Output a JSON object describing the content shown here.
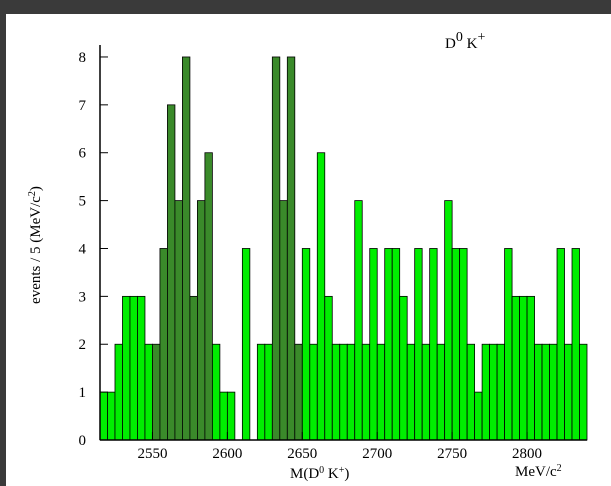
{
  "chart_data": {
    "type": "histogram",
    "title": [
      "D",
      "0",
      " K",
      "+"
    ],
    "xlabel": [
      "M(D",
      "0",
      " K",
      "+",
      ")"
    ],
    "xunit": [
      "MeV/c",
      "2"
    ],
    "ylabel": [
      "events / 5 (MeV/c",
      "2",
      ")"
    ],
    "bins": [
      2515,
      2520,
      2525,
      2530,
      2535,
      2540,
      2545,
      2550,
      2555,
      2560,
      2565,
      2570,
      2575,
      2580,
      2585,
      2590,
      2595,
      2600,
      2605,
      2610,
      2615,
      2620,
      2625,
      2630,
      2635,
      2640,
      2645,
      2650,
      2655,
      2660,
      2665,
      2670,
      2675,
      2680,
      2685,
      2690,
      2695,
      2700,
      2705,
      2710,
      2715,
      2720,
      2725,
      2730,
      2735,
      2740,
      2745,
      2750,
      2755,
      2760,
      2765,
      2770,
      2775,
      2780,
      2785,
      2790,
      2795,
      2800,
      2805,
      2810,
      2815,
      2820,
      2825,
      2830,
      2835,
      2840
    ],
    "values": [
      1,
      1,
      2,
      3,
      3,
      3,
      2,
      2,
      4,
      7,
      5,
      8,
      3,
      5,
      6,
      2,
      1,
      1,
      0,
      4,
      0,
      2,
      2,
      8,
      5,
      8,
      2,
      4,
      2,
      6,
      3,
      2,
      2,
      2,
      5,
      2,
      4,
      2,
      4,
      4,
      3,
      2,
      4,
      2,
      4,
      2,
      5,
      4,
      4,
      2,
      1,
      2,
      2,
      2,
      4,
      3,
      3,
      3,
      2,
      2,
      2,
      4,
      2,
      4,
      2
    ],
    "color": "#00ee00",
    "highlight_ranges": [
      [
        2550,
        2590
      ],
      [
        2630,
        2650
      ]
    ],
    "highlight_color": "#3a8a2a",
    "title_color": "#1010cc",
    "xlim": [
      2515,
      2840
    ],
    "ylim": [
      0,
      8.25
    ],
    "xticks": [
      2550,
      2600,
      2650,
      2700,
      2750,
      2800
    ],
    "yticks": [
      0,
      1,
      2,
      3,
      4,
      5,
      6,
      7,
      8
    ]
  }
}
